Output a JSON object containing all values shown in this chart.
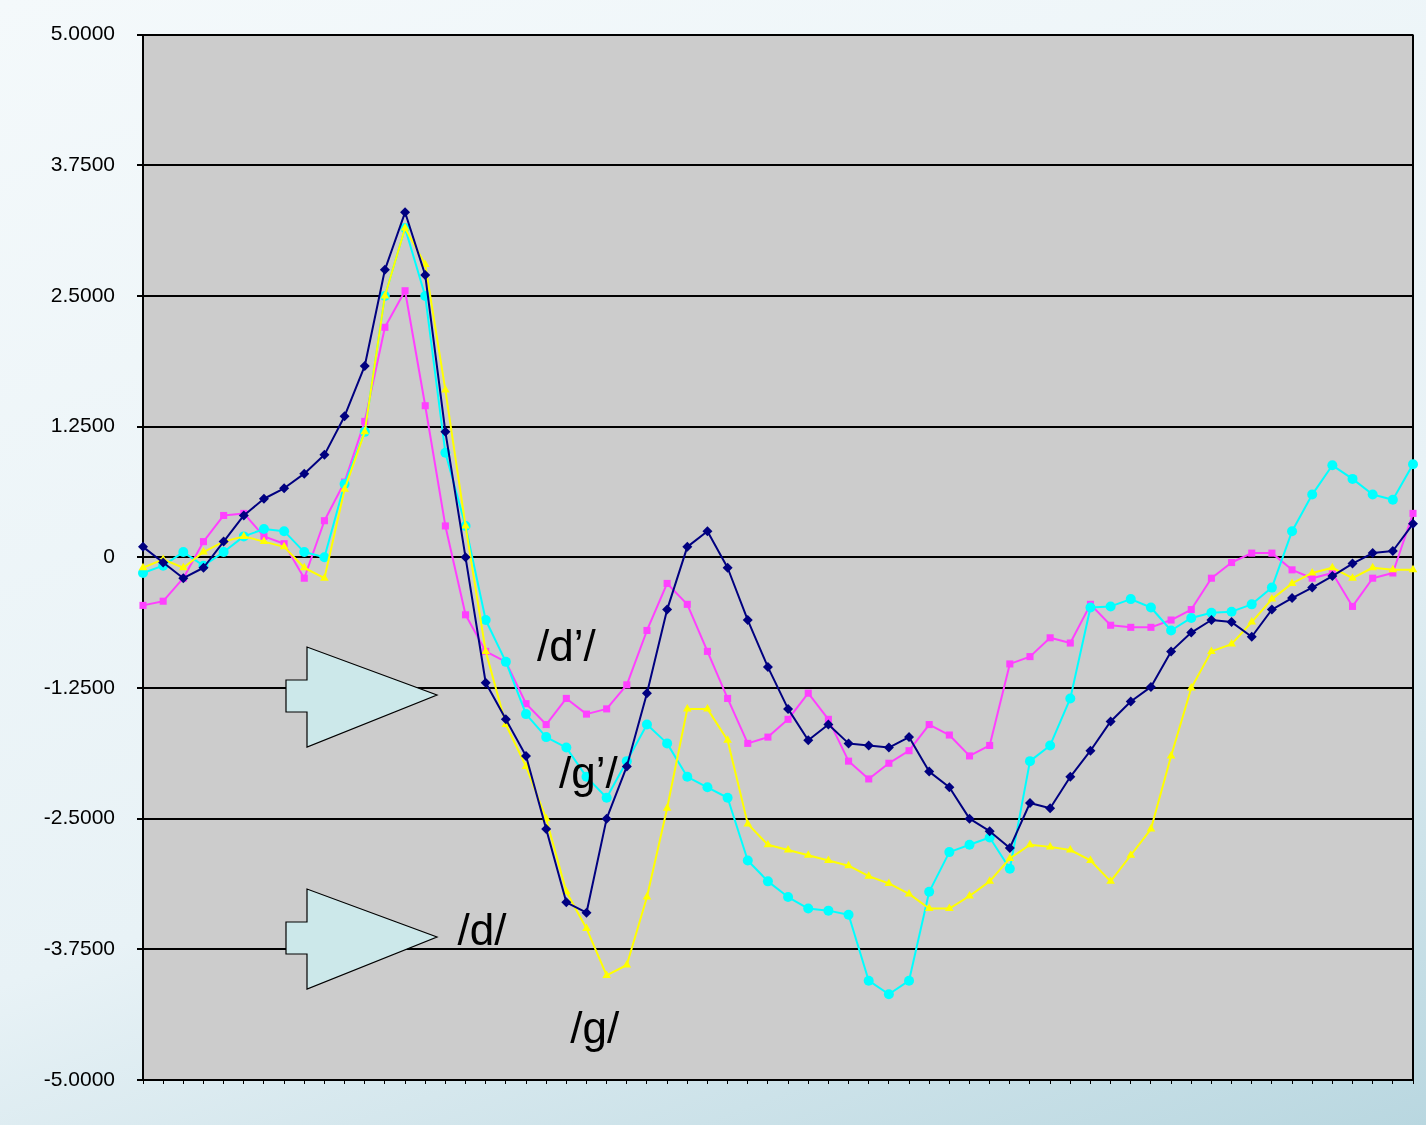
{
  "chart_data": {
    "type": "line",
    "categories": [
      null,
      null,
      null,
      null,
      null,
      null,
      null,
      null,
      null,
      null,
      null,
      null,
      null,
      null,
      null,
      null,
      null,
      null,
      null,
      null,
      null,
      null,
      null,
      null,
      null,
      null,
      null,
      null,
      null,
      null,
      null,
      null,
      null,
      null,
      null,
      null,
      null,
      null,
      null,
      null,
      null,
      null,
      null,
      null,
      null,
      null,
      null,
      null,
      null,
      null,
      null,
      null,
      null,
      null,
      null,
      null,
      null,
      null,
      null,
      null,
      null,
      null,
      null,
      null
    ],
    "series": [
      {
        "name": "/d/",
        "color": "#000080",
        "marker": "diamond",
        "values": [
          0.1,
          -0.05,
          -0.2,
          -0.1,
          0.15,
          0.4,
          0.56,
          0.66,
          0.8,
          0.98,
          1.35,
          1.83,
          2.75,
          3.3,
          2.7,
          1.2,
          0.0,
          -1.2,
          -1.55,
          -1.9,
          -2.6,
          -3.3,
          -3.4,
          -2.5,
          -2.0,
          -1.3,
          -0.5,
          0.1,
          0.25,
          -0.1,
          -0.6,
          -1.05,
          -1.45,
          -1.75,
          -1.6,
          -1.78,
          -1.8,
          -1.82,
          -1.72,
          -2.05,
          -2.2,
          -2.5,
          -2.62,
          -2.78,
          -2.35,
          -2.4,
          -2.1,
          -1.85,
          -1.57,
          -1.38,
          -1.24,
          -0.9,
          -0.72,
          -0.6,
          -0.62,
          -0.76,
          -0.5,
          -0.39,
          -0.29,
          -0.18,
          -0.06,
          0.04,
          0.06,
          0.32
        ]
      },
      {
        "name": "/g/",
        "color": "#ffff00",
        "marker": "triangle",
        "values": [
          -0.1,
          -0.02,
          -0.1,
          0.05,
          0.15,
          0.2,
          0.15,
          0.1,
          -0.1,
          -0.2,
          0.65,
          1.2,
          2.5,
          3.15,
          2.8,
          1.6,
          0.3,
          -0.9,
          -1.6,
          -2.0,
          -2.5,
          -3.2,
          -3.55,
          -4.0,
          -3.9,
          -3.25,
          -2.4,
          -1.45,
          -1.45,
          -1.75,
          -2.55,
          -2.75,
          -2.8,
          -2.85,
          -2.9,
          -2.95,
          -3.05,
          -3.12,
          -3.22,
          -3.36,
          -3.36,
          -3.24,
          -3.1,
          -2.88,
          -2.75,
          -2.77,
          -2.8,
          -2.9,
          -3.1,
          -2.85,
          -2.6,
          -1.9,
          -1.25,
          -0.9,
          -0.83,
          -0.62,
          -0.4,
          -0.25,
          -0.15,
          -0.1,
          -0.2,
          -0.1,
          -0.12,
          -0.12
        ]
      },
      {
        "name": "/g’/",
        "color": "#00ffff",
        "marker": "circle",
        "values": [
          -0.15,
          -0.08,
          0.05,
          -0.08,
          0.05,
          0.2,
          0.27,
          0.25,
          0.05,
          0.0,
          0.7,
          1.2,
          2.5,
          3.15,
          2.5,
          1.0,
          0.3,
          -0.6,
          -1.0,
          -1.5,
          -1.72,
          -1.82,
          -2.1,
          -2.3,
          -1.95,
          -1.6,
          -1.78,
          -2.1,
          -2.2,
          -2.3,
          -2.9,
          -3.1,
          -3.25,
          -3.36,
          -3.38,
          -3.42,
          -4.05,
          -4.18,
          -4.05,
          -3.2,
          -2.82,
          -2.75,
          -2.68,
          -2.98,
          -1.95,
          -1.8,
          -1.35,
          -0.48,
          -0.47,
          -0.4,
          -0.48,
          -0.7,
          -0.58,
          -0.53,
          -0.52,
          -0.45,
          -0.29,
          0.25,
          0.6,
          0.88,
          0.75,
          0.6,
          0.55,
          0.89
        ]
      },
      {
        "name": "/d’/",
        "color": "#ff40ff",
        "marker": "square",
        "values": [
          -0.46,
          -0.42,
          -0.2,
          0.15,
          0.4,
          0.42,
          0.2,
          0.13,
          -0.2,
          0.35,
          0.72,
          1.3,
          2.2,
          2.55,
          1.45,
          0.3,
          -0.55,
          -0.9,
          -1.0,
          -1.4,
          -1.6,
          -1.35,
          -1.5,
          -1.45,
          -1.22,
          -0.7,
          -0.25,
          -0.45,
          -0.9,
          -1.35,
          -1.78,
          -1.72,
          -1.55,
          -1.3,
          -1.55,
          -1.95,
          -2.12,
          -1.97,
          -1.85,
          -1.6,
          -1.7,
          -1.9,
          -1.8,
          -1.02,
          -0.95,
          -0.77,
          -0.82,
          -0.45,
          -0.65,
          -0.67,
          -0.67,
          -0.6,
          -0.5,
          -0.2,
          -0.05,
          0.04,
          0.04,
          -0.12,
          -0.2,
          -0.15,
          -0.47,
          -0.2,
          -0.15,
          0.42
        ]
      }
    ],
    "ylim": [
      -5,
      5
    ],
    "yticks": [
      {
        "value": -5,
        "label": "-5.0000"
      },
      {
        "value": -3.75,
        "label": "-3.7500"
      },
      {
        "value": -2.5,
        "label": "-2.5000"
      },
      {
        "value": -1.25,
        "label": "-1.2500"
      },
      {
        "value": 0,
        "label": "0"
      },
      {
        "value": 1.25,
        "label": "1.2500"
      },
      {
        "value": 2.5,
        "label": "2.5000"
      },
      {
        "value": 3.75,
        "label": "3.7500"
      },
      {
        "value": 5,
        "label": "5.0000"
      }
    ],
    "grid": "y",
    "tick_labels": "y"
  }
}
